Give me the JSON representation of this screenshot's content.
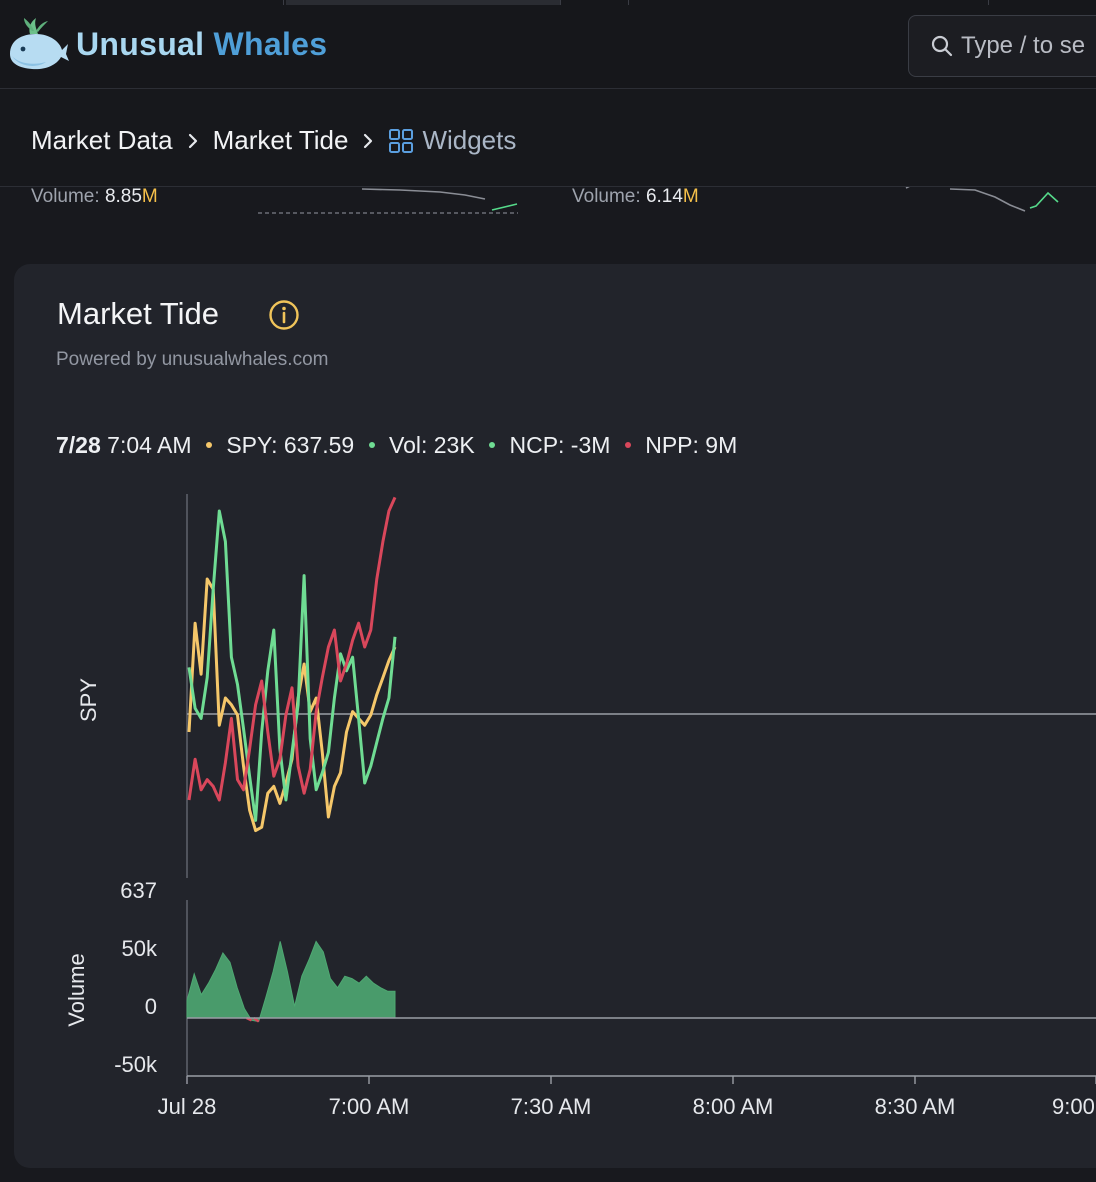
{
  "app": {
    "logo_word1": "Unusual",
    "logo_word2": "Whales",
    "search_placeholder": "Type / to se"
  },
  "breadcrumb": {
    "items": [
      "Market Data",
      "Market Tide"
    ],
    "current": "Widgets"
  },
  "summary_strip": {
    "left_volume_label": "Volume:",
    "left_volume_value": "8.85",
    "left_volume_suffix": "M",
    "right_volume_label": "Volume:",
    "right_volume_value": "6.14",
    "right_volume_suffix": "M"
  },
  "widget": {
    "title": "Market Tide",
    "powered_by": "Powered by unusualwhales.com",
    "stats": {
      "date": "7/28",
      "time": "7:04 AM",
      "spy": "SPY: 637.59",
      "vol": "Vol: 23K",
      "ncp": "NCP: -3M",
      "npp": "NPP: 9M"
    }
  },
  "colors": {
    "spy": "#f5c76a",
    "ncp": "#6fdc93",
    "npp": "#d9475b",
    "volume": "#4ea872",
    "accent": "#4f9fd8",
    "suffix": "#f5c04a"
  },
  "chart_data": {
    "type": "line",
    "x_tick_labels": [
      "Jul 28",
      "7:00 AM",
      "7:30 AM",
      "8:00 AM",
      "8:30 AM",
      "9:00"
    ],
    "upper_panel": {
      "ylabel": "SPY",
      "y_tick_labels": [
        "637"
      ],
      "note": "values are relative (SPY scale); NCP/NPP in relative units",
      "series": [
        {
          "name": "SPY",
          "color": "#f5c76a",
          "values": [
            0.3,
            0.62,
            0.47,
            0.75,
            0.72,
            0.32,
            0.4,
            0.38,
            0.35,
            0.2,
            0.07,
            0.01,
            0.02,
            0.12,
            0.14,
            0.09,
            0.15,
            0.22,
            0.4,
            0.5,
            0.36,
            0.4,
            0.24,
            0.05,
            0.14,
            0.18,
            0.3,
            0.36,
            0.34,
            0.32,
            0.35,
            0.41,
            0.46,
            0.51,
            0.55
          ]
        },
        {
          "name": "NCP",
          "color": "#6fdc93",
          "values": [
            0.49,
            0.37,
            0.34,
            0.46,
            0.72,
            0.95,
            0.86,
            0.52,
            0.44,
            0.31,
            0.17,
            0.04,
            0.3,
            0.48,
            0.6,
            0.25,
            0.1,
            0.24,
            0.38,
            0.76,
            0.28,
            0.13,
            0.18,
            0.24,
            0.4,
            0.53,
            0.48,
            0.52,
            0.34,
            0.15,
            0.2,
            0.27,
            0.34,
            0.4,
            0.58
          ]
        },
        {
          "name": "NPP",
          "color": "#d9475b",
          "values": [
            0.1,
            0.22,
            0.13,
            0.16,
            0.14,
            0.1,
            0.21,
            0.34,
            0.16,
            0.13,
            0.25,
            0.38,
            0.45,
            0.3,
            0.17,
            0.22,
            0.35,
            0.43,
            0.2,
            0.12,
            0.19,
            0.36,
            0.46,
            0.55,
            0.6,
            0.45,
            0.5,
            0.57,
            0.62,
            0.55,
            0.6,
            0.75,
            0.86,
            0.95,
            0.99
          ]
        }
      ]
    },
    "lower_panel": {
      "type": "area",
      "ylabel": "Volume",
      "y_tick_labels": [
        "50k",
        "0",
        "-50k"
      ],
      "ylim": [
        -50000,
        50000
      ],
      "series": [
        {
          "name": "Volume",
          "color": "#4ea872",
          "values": [
            15000,
            38000,
            20000,
            30000,
            42000,
            56000,
            48000,
            26000,
            8000,
            -2000,
            -3000,
            18000,
            40000,
            66000,
            40000,
            10000,
            36000,
            50000,
            66000,
            57000,
            34000,
            26000,
            36000,
            34000,
            30000,
            36000,
            30000,
            26000,
            23000,
            23000
          ]
        }
      ]
    }
  }
}
